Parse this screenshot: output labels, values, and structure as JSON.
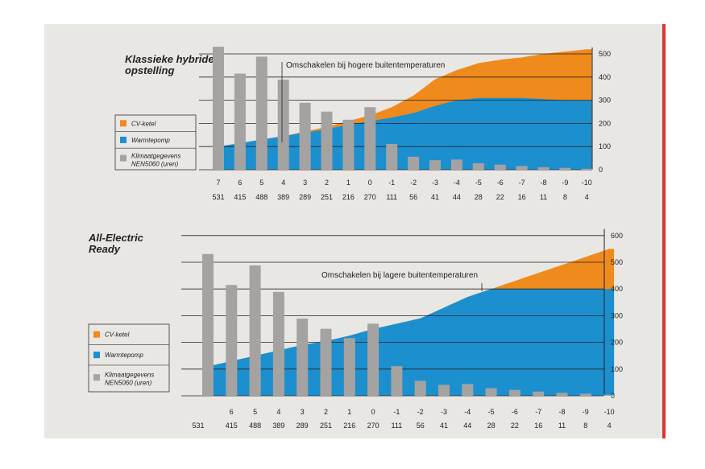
{
  "colors": {
    "cv": "#ef8a1c",
    "wp": "#1c8fcf",
    "klimaat": "#a5a3a2"
  },
  "chart_data": [
    {
      "type": "area",
      "title_lines": [
        "Klassieke hybride",
        "opstelling"
      ],
      "annotation": "Omschakelen bij hogere buitentemperaturen",
      "categories": [
        "7",
        "6",
        "5",
        "4",
        "3",
        "2",
        "1",
        "0",
        "-1",
        "-2",
        "-3",
        "-4",
        "-5",
        "-6",
        "-7",
        "-8",
        "-9",
        "-10"
      ],
      "hours": [
        "531",
        "415",
        "488",
        "389",
        "289",
        "251",
        "216",
        "270",
        "111",
        "56",
        "41",
        "44",
        "28",
        "22",
        "16",
        "11",
        "8",
        "4"
      ],
      "yticks": [
        "0",
        "100",
        "200",
        "300",
        "400",
        "500"
      ],
      "ylim": [
        0,
        540
      ],
      "legend": [
        "CV-ketel",
        "Warmtepomp",
        "Klimaatgegevens",
        "NEN5060 (uren)"
      ],
      "series": [
        {
          "name": "Warmtepomp",
          "values": [
            100,
            115,
            130,
            145,
            160,
            175,
            195,
            210,
            225,
            245,
            275,
            300,
            310,
            310,
            310,
            305,
            300,
            300
          ]
        },
        {
          "name": "CV-ketel (total)",
          "values": [
            100,
            115,
            130,
            145,
            165,
            185,
            210,
            235,
            270,
            320,
            390,
            430,
            460,
            475,
            485,
            500,
            510,
            520
          ]
        },
        {
          "name": "Klimaatgegevens NEN5060 (uren)",
          "values": [
            531,
            415,
            488,
            389,
            289,
            251,
            216,
            270,
            111,
            56,
            41,
            44,
            28,
            22,
            16,
            11,
            8,
            4
          ]
        }
      ]
    },
    {
      "type": "area",
      "title_lines": [
        "All-Electric",
        "Ready"
      ],
      "annotation": "Omschakelen bij lagere buitentemperaturen",
      "categories": [
        "",
        "6",
        "5",
        "4",
        "3",
        "2",
        "1",
        "0",
        "-1",
        "-2",
        "-3",
        "-4",
        "-5",
        "-6",
        "-7",
        "-8",
        "-9",
        "-10"
      ],
      "hours": [
        "531",
        "415",
        "488",
        "389",
        "289",
        "251",
        "216",
        "270",
        "111",
        "56",
        "41",
        "44",
        "28",
        "22",
        "16",
        "11",
        "8",
        "4"
      ],
      "yticks": [
        "0",
        "100",
        "200",
        "300",
        "400",
        "500",
        "600"
      ],
      "ylim": [
        0,
        600
      ],
      "legend": [
        "CV-ketel",
        "Warmtepomp",
        "Klimaatgegevens",
        "NEN5060 (uren)"
      ],
      "series": [
        {
          "name": "Warmtepomp",
          "values": [
            110,
            130,
            150,
            170,
            190,
            205,
            225,
            250,
            270,
            290,
            330,
            370,
            400,
            400,
            400,
            400,
            400,
            400
          ]
        },
        {
          "name": "CV-ketel (total)",
          "values": [
            110,
            130,
            150,
            170,
            190,
            205,
            225,
            250,
            270,
            290,
            330,
            370,
            400,
            430,
            460,
            490,
            520,
            550
          ]
        },
        {
          "name": "Klimaatgegevens NEN5060 (uren)",
          "values": [
            531,
            415,
            488,
            389,
            289,
            251,
            216,
            270,
            111,
            56,
            41,
            44,
            28,
            22,
            16,
            11,
            8,
            4
          ]
        }
      ]
    }
  ]
}
